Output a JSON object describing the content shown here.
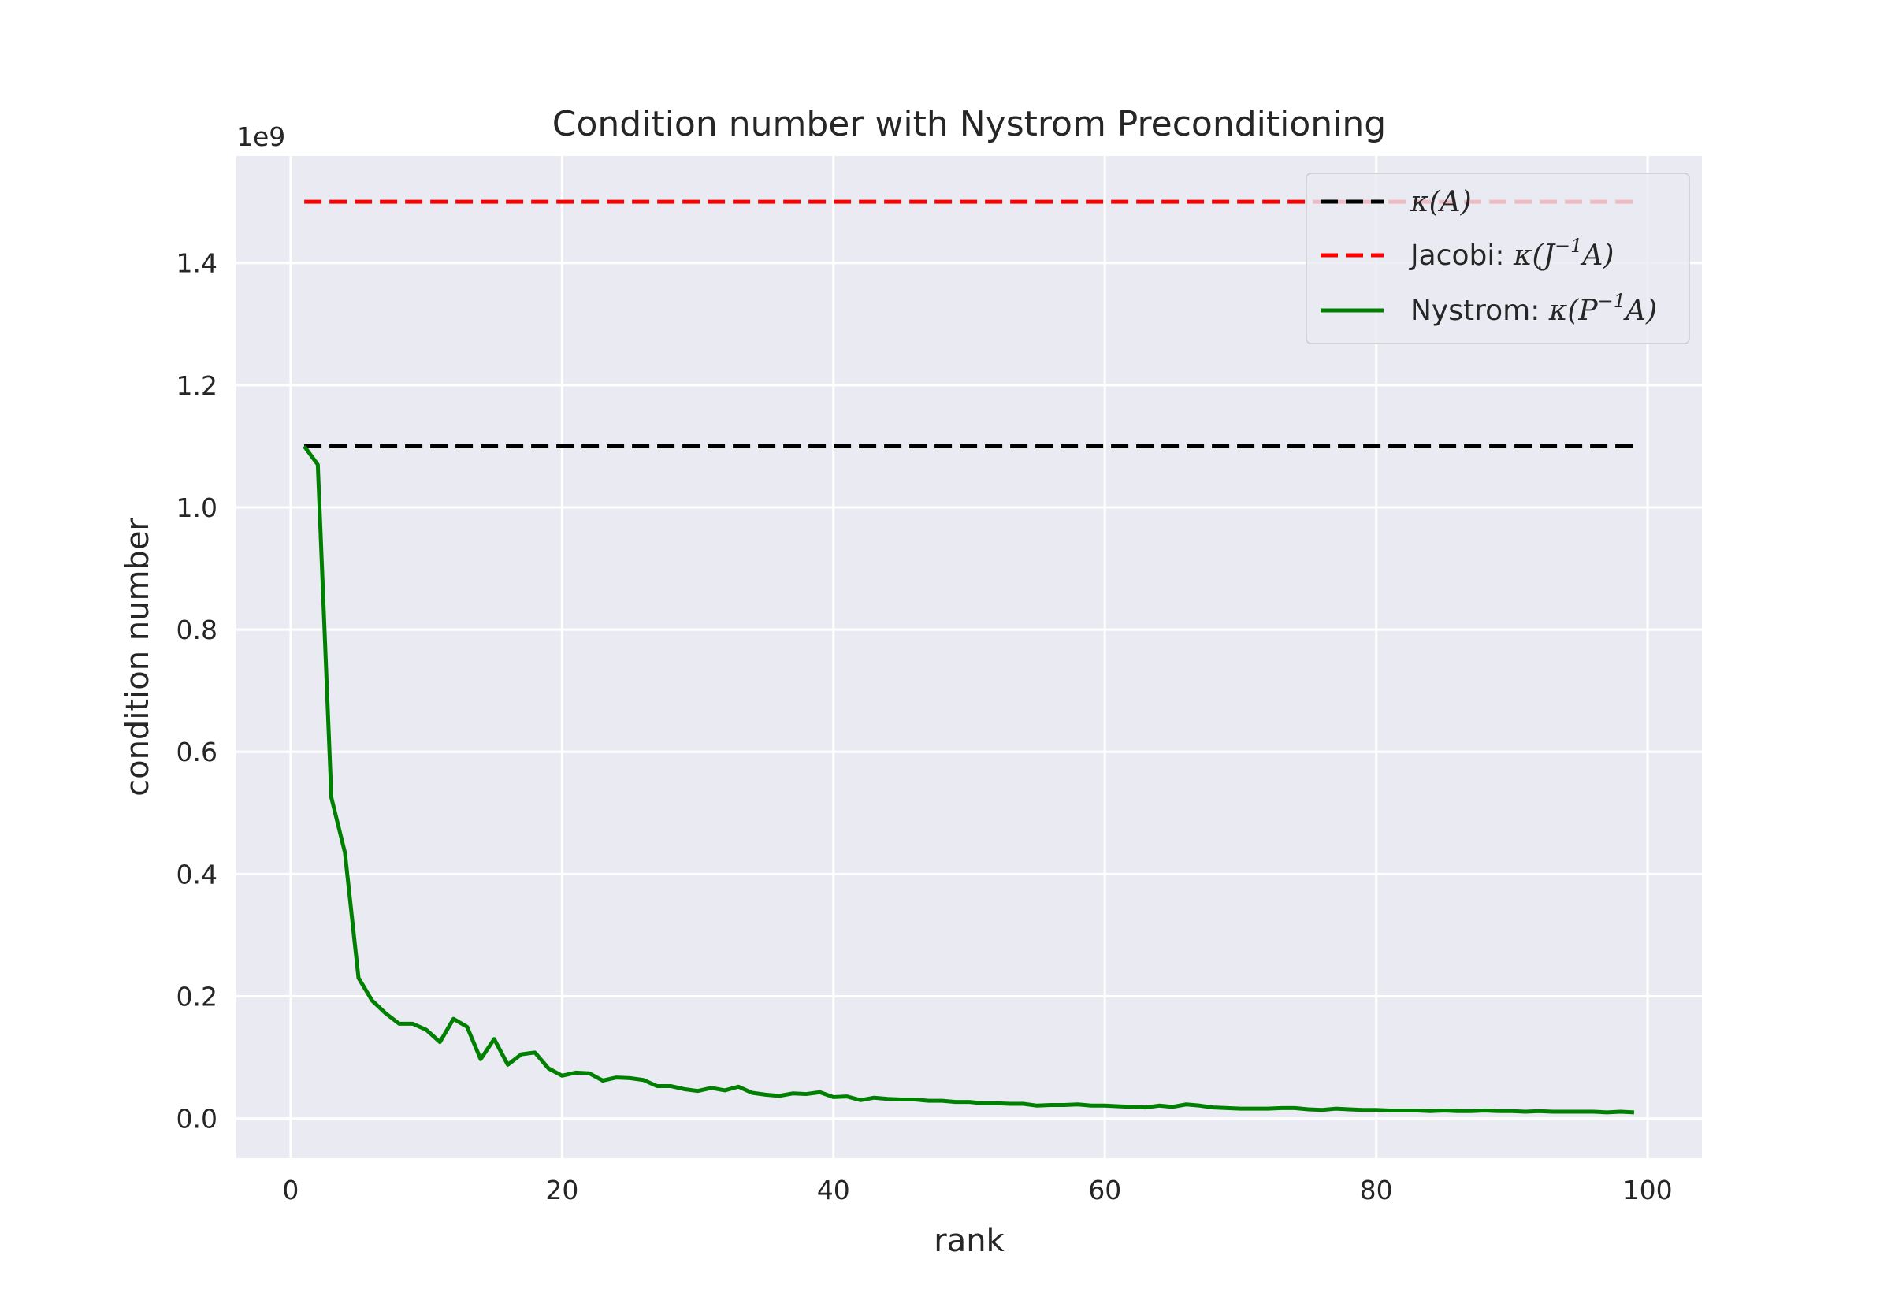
{
  "chart_data": {
    "type": "line",
    "title": "Condition number with Nystrom Preconditioning",
    "xlabel": "rank",
    "ylabel": "condition number",
    "y_offset_label": "1e9",
    "xlim": [
      -4,
      104
    ],
    "ylim": [
      -0.065,
      1.575
    ],
    "y_scale_factor": 1000000000,
    "xticks": [
      0,
      20,
      40,
      60,
      80,
      100
    ],
    "yticks": [
      0.0,
      0.2,
      0.4,
      0.6,
      0.8,
      1.0,
      1.2,
      1.4
    ],
    "ytick_labels": [
      "0.0",
      "0.2",
      "0.4",
      "0.6",
      "0.8",
      "1.0",
      "1.2",
      "1.4"
    ],
    "grid": true,
    "legend_position": "top-right",
    "series": [
      {
        "name": "κ(A)",
        "legend_parts": {
          "plain": "",
          "math": "κ(A)",
          "sup": "",
          "math_tail": ""
        },
        "color": "#000000",
        "style": "dashed",
        "x": [
          1,
          99
        ],
        "y": [
          1.1,
          1.1
        ]
      },
      {
        "name": "Jacobi: κ(J^{-1}A)",
        "legend_parts": {
          "plain": "Jacobi: ",
          "math": "κ(J",
          "sup": "−1",
          "math_tail": "A)"
        },
        "color": "#ff0000",
        "style": "dashed",
        "x": [
          1,
          99
        ],
        "y": [
          1.5,
          1.5
        ]
      },
      {
        "name": "Nystrom: κ(P^{-1}A)",
        "legend_parts": {
          "plain": "Nystrom: ",
          "math": "κ(P",
          "sup": "−1",
          "math_tail": "A)"
        },
        "color": "#008000",
        "style": "solid",
        "x": [
          1,
          2,
          3,
          4,
          5,
          6,
          7,
          8,
          9,
          10,
          11,
          12,
          13,
          14,
          15,
          16,
          17,
          18,
          19,
          20,
          21,
          22,
          23,
          24,
          25,
          26,
          27,
          28,
          29,
          30,
          31,
          32,
          33,
          34,
          35,
          36,
          37,
          38,
          39,
          40,
          41,
          42,
          43,
          44,
          45,
          46,
          47,
          48,
          49,
          50,
          51,
          52,
          53,
          54,
          55,
          56,
          57,
          58,
          59,
          60,
          61,
          62,
          63,
          64,
          65,
          66,
          67,
          68,
          69,
          70,
          71,
          72,
          73,
          74,
          75,
          76,
          77,
          78,
          79,
          80,
          81,
          82,
          83,
          84,
          85,
          86,
          87,
          88,
          89,
          90,
          91,
          92,
          93,
          94,
          95,
          96,
          97,
          98,
          99
        ],
        "y": [
          1.1,
          1.07,
          0.525,
          0.435,
          0.23,
          0.193,
          0.172,
          0.155,
          0.155,
          0.145,
          0.125,
          0.163,
          0.15,
          0.097,
          0.13,
          0.088,
          0.105,
          0.108,
          0.082,
          0.07,
          0.075,
          0.074,
          0.062,
          0.067,
          0.066,
          0.063,
          0.053,
          0.053,
          0.048,
          0.045,
          0.05,
          0.046,
          0.052,
          0.042,
          0.039,
          0.037,
          0.041,
          0.04,
          0.043,
          0.035,
          0.036,
          0.03,
          0.034,
          0.032,
          0.031,
          0.031,
          0.029,
          0.029,
          0.027,
          0.027,
          0.025,
          0.025,
          0.024,
          0.024,
          0.021,
          0.022,
          0.022,
          0.023,
          0.021,
          0.021,
          0.02,
          0.019,
          0.018,
          0.021,
          0.019,
          0.023,
          0.021,
          0.018,
          0.017,
          0.016,
          0.016,
          0.016,
          0.017,
          0.017,
          0.015,
          0.014,
          0.016,
          0.015,
          0.014,
          0.014,
          0.013,
          0.013,
          0.013,
          0.012,
          0.013,
          0.012,
          0.012,
          0.013,
          0.012,
          0.012,
          0.011,
          0.012,
          0.011,
          0.011,
          0.011,
          0.011,
          0.01,
          0.011,
          0.01
        ]
      }
    ]
  }
}
